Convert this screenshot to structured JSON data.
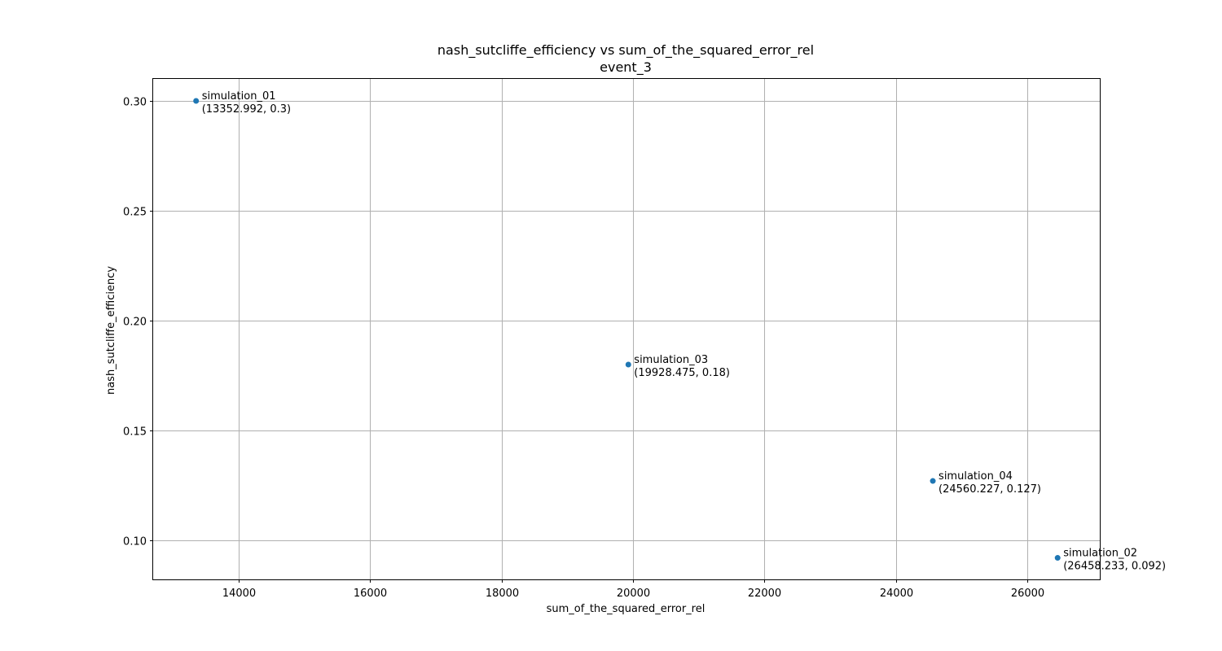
{
  "chart_data": {
    "type": "scatter",
    "title": "nash_sutcliffe_efficiency vs sum_of_the_squared_error_rel",
    "subtitle": "event_3",
    "xlabel": "sum_of_the_squared_error_rel",
    "ylabel": "nash_sutcliffe_efficiency",
    "xlim": [
      12700,
      27100
    ],
    "ylim": [
      0.0822,
      0.31
    ],
    "xticks": [
      14000,
      16000,
      18000,
      20000,
      22000,
      24000,
      26000
    ],
    "xtick_labels": [
      "14000",
      "16000",
      "18000",
      "20000",
      "22000",
      "24000",
      "26000"
    ],
    "yticks": [
      0.1,
      0.15,
      0.2,
      0.25,
      0.3
    ],
    "ytick_labels": [
      "0.10",
      "0.15",
      "0.20",
      "0.25",
      "0.30"
    ],
    "grid": true,
    "marker_color": "#1f77b4",
    "points": [
      {
        "name": "simulation_01",
        "x": 13352.992,
        "y": 0.3,
        "coord_label": "(13352.992, 0.3)"
      },
      {
        "name": "simulation_03",
        "x": 19928.475,
        "y": 0.18,
        "coord_label": "(19928.475, 0.18)"
      },
      {
        "name": "simulation_04",
        "x": 24560.227,
        "y": 0.127,
        "coord_label": "(24560.227, 0.127)"
      },
      {
        "name": "simulation_02",
        "x": 26458.233,
        "y": 0.092,
        "coord_label": "(26458.233, 0.092)"
      }
    ]
  }
}
